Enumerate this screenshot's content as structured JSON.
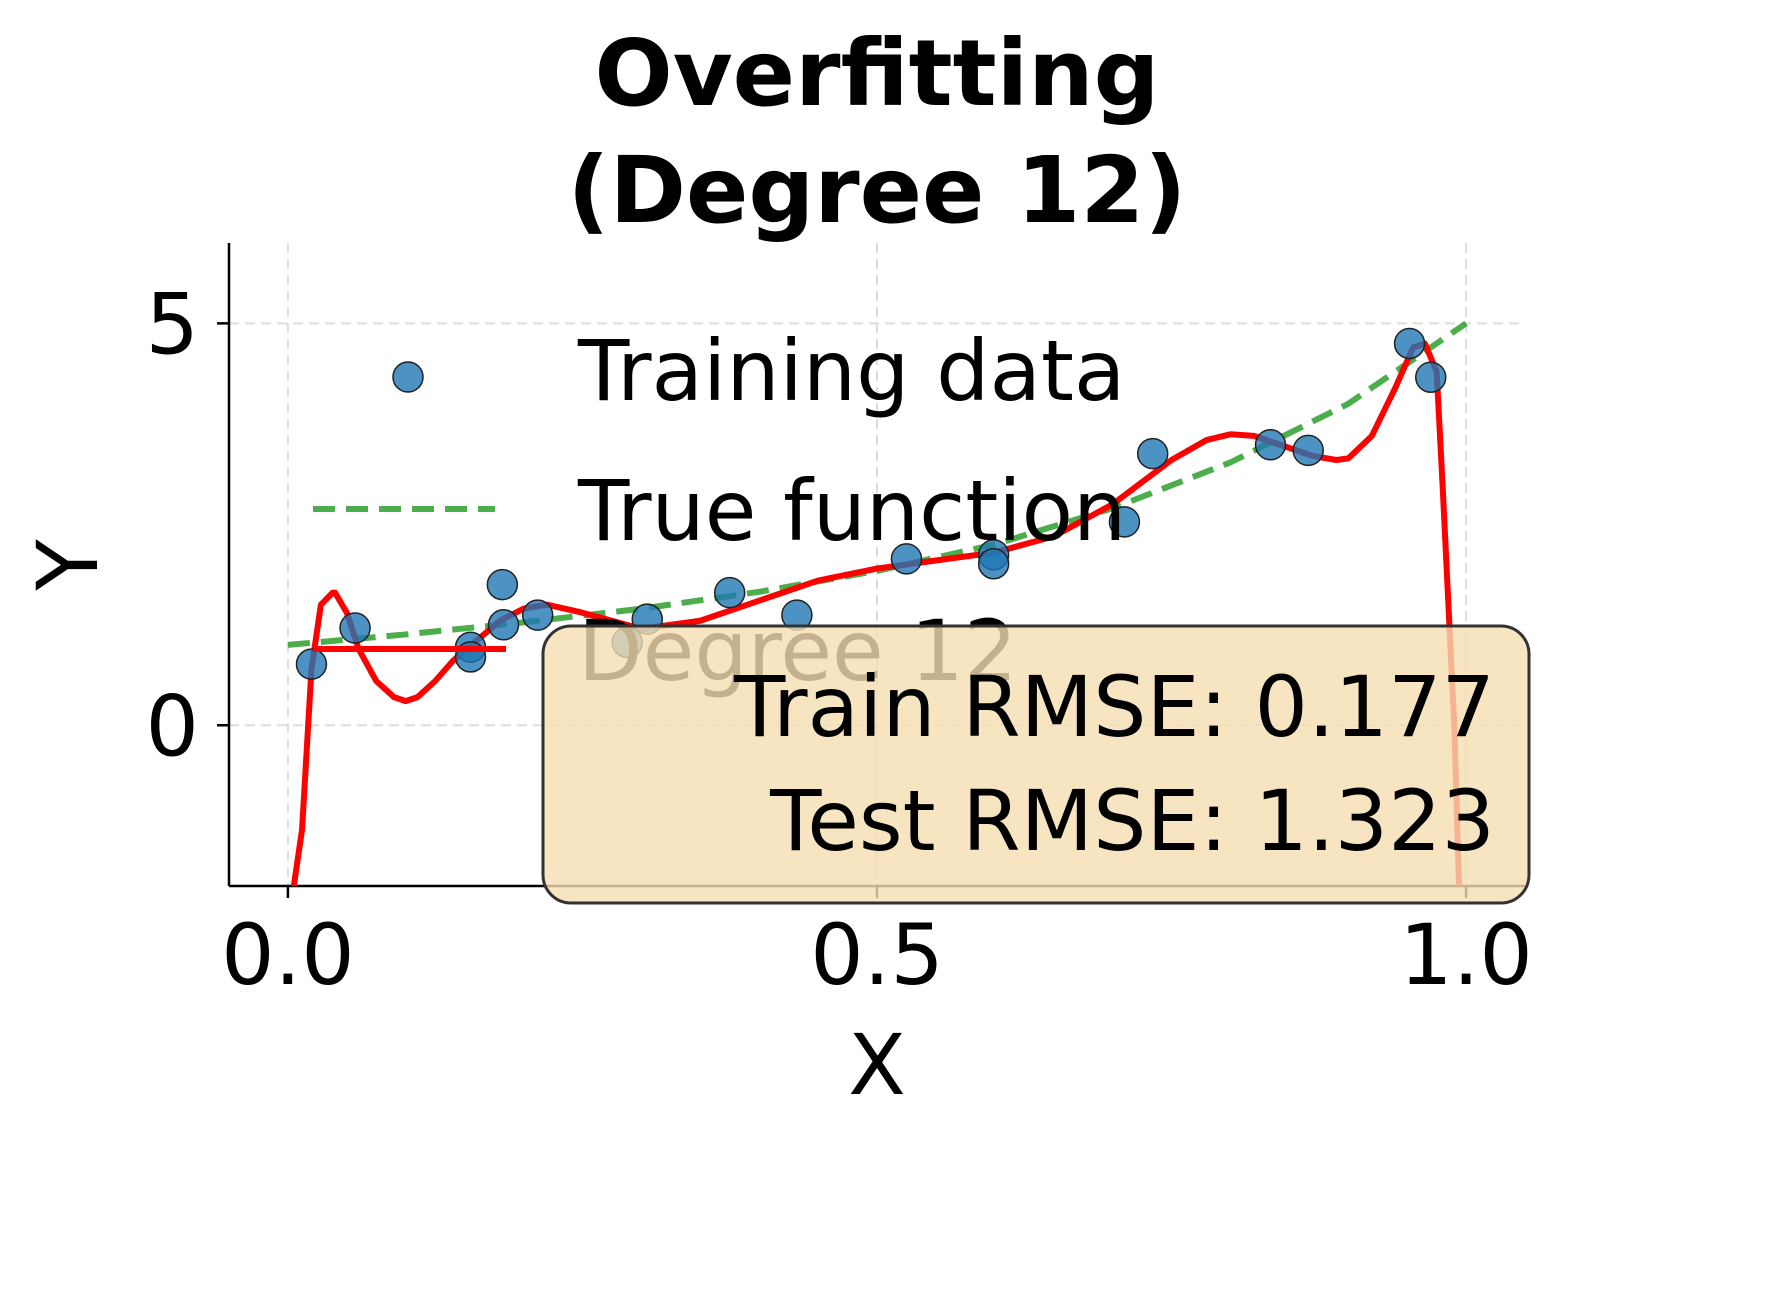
{
  "chart_data": {
    "type": "scatter",
    "title": "Overfitting\n(Degree 12)",
    "title_lines": [
      "Overfitting",
      "(Degree 12)"
    ],
    "xlabel": "X",
    "ylabel": "Y",
    "xlim": [
      -0.05,
      1.05
    ],
    "ylim": [
      -2.0,
      6.0
    ],
    "xticks": [
      0.0,
      0.5,
      1.0
    ],
    "xtick_labels": [
      "0.0",
      "0.5",
      "1.0"
    ],
    "yticks": [
      0,
      5
    ],
    "ytick_labels": [
      "0",
      "5"
    ],
    "grid": true,
    "legend_position": "upper left",
    "legend": [
      {
        "label": "Training data",
        "kind": "marker",
        "color": "#1f77b4"
      },
      {
        "label": "True function",
        "kind": "dashed-line",
        "color": "#2ca02c"
      },
      {
        "label": "Degree 12",
        "kind": "line",
        "color": "#ff0000"
      }
    ],
    "series": [
      {
        "name": "Training data",
        "type": "scatter",
        "color": "#1f77b4",
        "x": [
          0.02,
          0.057,
          0.155,
          0.155,
          0.182,
          0.183,
          0.212,
          0.288,
          0.305,
          0.375,
          0.432,
          0.525,
          0.599,
          0.599,
          0.71,
          0.734,
          0.834,
          0.866,
          0.952,
          0.97
        ],
        "y": [
          0.76,
          1.21,
          0.97,
          0.85,
          1.75,
          1.25,
          1.37,
          1.03,
          1.32,
          1.65,
          1.37,
          2.07,
          2.12,
          2.01,
          2.53,
          3.38,
          3.49,
          3.42,
          4.75,
          4.33
        ]
      },
      {
        "name": "True function",
        "type": "line",
        "style": "dashed",
        "color": "#2ca02c",
        "x": [
          0.0,
          0.1,
          0.2,
          0.3,
          0.4,
          0.5,
          0.6,
          0.7,
          0.8,
          0.9,
          1.0
        ],
        "y": [
          1.0,
          1.13,
          1.28,
          1.45,
          1.66,
          1.92,
          2.25,
          2.7,
          3.27,
          4.0,
          5.0
        ]
      },
      {
        "name": "Degree 12",
        "type": "line",
        "color": "#ff0000",
        "x": [
          0.005,
          0.012,
          0.02,
          0.028,
          0.038,
          0.04,
          0.05,
          0.06,
          0.075,
          0.09,
          0.1,
          0.11,
          0.125,
          0.14,
          0.16,
          0.18,
          0.2,
          0.22,
          0.25,
          0.3,
          0.35,
          0.4,
          0.45,
          0.5,
          0.55,
          0.6,
          0.65,
          0.7,
          0.75,
          0.78,
          0.8,
          0.82,
          0.85,
          0.87,
          0.89,
          0.9,
          0.92,
          0.94,
          0.955,
          0.965,
          0.975,
          0.98,
          0.99,
          0.994
        ],
        "y": [
          -2.0,
          -1.3,
          0.7,
          1.5,
          1.65,
          1.65,
          1.4,
          0.95,
          0.55,
          0.35,
          0.3,
          0.35,
          0.55,
          0.8,
          1.05,
          1.3,
          1.45,
          1.5,
          1.4,
          1.2,
          1.3,
          1.55,
          1.8,
          1.95,
          2.05,
          2.15,
          2.35,
          2.75,
          3.3,
          3.55,
          3.62,
          3.6,
          3.45,
          3.35,
          3.3,
          3.32,
          3.6,
          4.2,
          4.7,
          4.75,
          4.4,
          3.0,
          0.0,
          -2.0
        ]
      }
    ],
    "annotation": {
      "lines": [
        "Train RMSE: 0.177",
        "Test RMSE: 1.323"
      ],
      "train_rmse": 0.177,
      "test_rmse": 1.323,
      "box_facecolor": "#f5deb3",
      "box_edgecolor": "#333333"
    }
  }
}
